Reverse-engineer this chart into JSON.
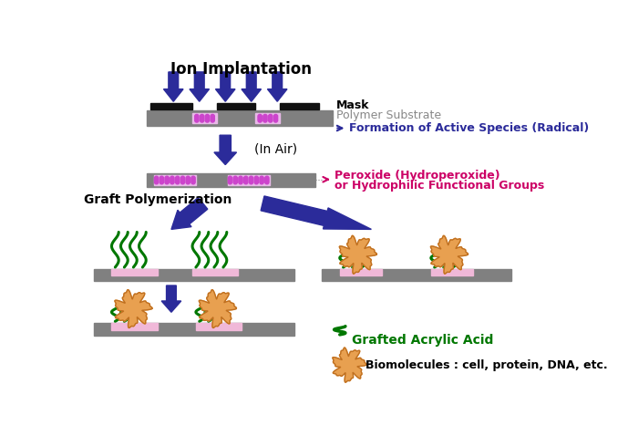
{
  "title": "Ion Implantation",
  "bg_color": "#ffffff",
  "arrow_color": "#2b2b9a",
  "mask_color": "#111111",
  "substrate_color": "#808080",
  "dots_color": "#cc44cc",
  "dots_bg": "#e8b8e8",
  "radical_color": "#2b2b9a",
  "peroxide_color": "#cc0066",
  "graft_color": "#007700",
  "biomol_fill": "#e8a050",
  "biomol_edge": "#c07020",
  "pink_color": "#f0b8d8",
  "label_mask": "Mask",
  "label_polymer": "Polymer Substrate",
  "label_radical": "Formation of Active Species (Radical)",
  "label_inair": "(In Air)",
  "label_peroxide_1": "Peroxide (Hydroperoxide)",
  "label_peroxide_2": "or Hydrophilic Functional Groups",
  "label_graft_poly": "Graft Polymerization",
  "label_grafted": "Grafted Acrylic Acid",
  "label_biomol": "Biomolecules : cell, protein, DNA, etc."
}
